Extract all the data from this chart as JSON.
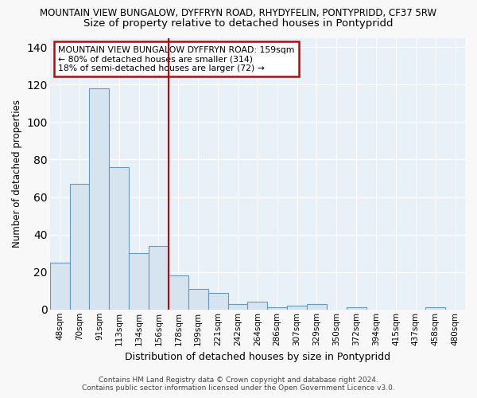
{
  "title": "MOUNTAIN VIEW BUNGALOW, DYFFRYN ROAD, RHYDYFELIN, PONTYPRIDD, CF37 5RW",
  "subtitle": "Size of property relative to detached houses in Pontypridd",
  "xlabel": "Distribution of detached houses by size in Pontypridd",
  "ylabel": "Number of detached properties",
  "categories": [
    "48sqm",
    "70sqm",
    "91sqm",
    "113sqm",
    "134sqm",
    "156sqm",
    "178sqm",
    "199sqm",
    "221sqm",
    "242sqm",
    "264sqm",
    "286sqm",
    "307sqm",
    "329sqm",
    "350sqm",
    "372sqm",
    "394sqm",
    "415sqm",
    "437sqm",
    "458sqm",
    "480sqm"
  ],
  "values": [
    25,
    67,
    118,
    76,
    30,
    34,
    18,
    11,
    9,
    3,
    4,
    1,
    2,
    3,
    0,
    1,
    0,
    0,
    0,
    1,
    0
  ],
  "bar_color": "#d6e4f0",
  "bar_edge_color": "#6699bb",
  "vline_color": "#cc0000",
  "annotation_line1": "MOUNTAIN VIEW BUNGALOW DYFFRYN ROAD: 159sqm",
  "annotation_line2": "← 80% of detached houses are smaller (314)",
  "annotation_line3": "18% of semi-detached houses are larger (72) →",
  "annotation_box_color": "#cc0000",
  "ylim": [
    0,
    145
  ],
  "yticks": [
    0,
    20,
    40,
    60,
    80,
    100,
    120,
    140
  ],
  "footer_line1": "Contains HM Land Registry data © Crown copyright and database right 2024.",
  "footer_line2": "Contains public sector information licensed under the Open Government Licence v3.0.",
  "bg_color": "#f8f8f8",
  "plot_bg_color": "#e8f0f8",
  "title_fontsize": 8.5,
  "subtitle_fontsize": 9.5
}
